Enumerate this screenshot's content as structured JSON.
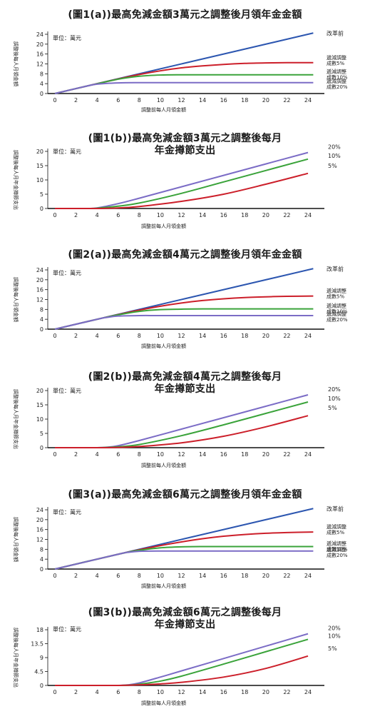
{
  "chart_data": [
    {
      "type": "line",
      "title": "(圖1(a))最高免減金額3萬元之調整後月領年金金額",
      "unit": "單位：萬元",
      "xlabel": "調整前每人月領金額",
      "ylabel": "調整後每人月領金額",
      "xticks": [
        0,
        2,
        4,
        6,
        8,
        10,
        12,
        14,
        16,
        18,
        20,
        22,
        24
      ],
      "yticks": [
        0,
        4,
        8,
        12,
        16,
        20,
        24
      ],
      "ylim": [
        0,
        26
      ],
      "xlim": [
        0,
        25
      ],
      "series": [
        {
          "name": "改革前",
          "color": "#2c56b0",
          "x": [
            0,
            24.5
          ],
          "y": [
            0,
            24.5
          ]
        },
        {
          "name": "遞減調整成數5%",
          "color": "#cc1f2a",
          "x": [
            0,
            3,
            6,
            8,
            10,
            12,
            14,
            16,
            18,
            20,
            22,
            24.5
          ],
          "y": [
            0,
            3,
            5.9,
            7.7,
            9.2,
            10.4,
            11.2,
            11.8,
            12.2,
            12.4,
            12.5,
            12.5
          ]
        },
        {
          "name": "遞減調整成數10%",
          "color": "#3aa33a",
          "x": [
            0,
            3,
            6,
            8,
            10,
            12,
            14,
            16,
            18,
            20,
            22,
            24.5
          ],
          "y": [
            0,
            3,
            5.8,
            7.0,
            7.5,
            7.6,
            7.6,
            7.6,
            7.6,
            7.6,
            7.6,
            7.6
          ]
        },
        {
          "name": "遞減調整成數20%",
          "color": "#7b6cc6",
          "x": [
            0,
            3,
            4,
            6,
            8,
            10,
            14,
            18,
            22,
            24.5
          ],
          "y": [
            0,
            3,
            3.8,
            4.3,
            4.4,
            4.4,
            4.4,
            4.4,
            4.4,
            4.4
          ]
        }
      ]
    },
    {
      "type": "line",
      "title": "(圖1(b))最高免減金額3萬元之調整後每月年金撙節支出",
      "title_line1": "(圖1(b))最高免減金額3萬元之調整後每月",
      "title_line2": "年金撙節支出",
      "unit": "單位：萬元",
      "xlabel": "調整前每人月領金額",
      "ylabel": "調整後每人月年金撙節支出",
      "xticks": [
        0,
        2,
        4,
        6,
        8,
        10,
        12,
        14,
        16,
        18,
        20,
        22,
        24
      ],
      "yticks": [
        0,
        5,
        10,
        15,
        20
      ],
      "ylim": [
        0,
        21
      ],
      "xlim": [
        0,
        25
      ],
      "series": [
        {
          "name": "20%",
          "color": "#7b6cc6",
          "x": [
            0,
            2,
            3,
            4,
            6,
            8,
            12,
            16,
            20,
            24
          ],
          "y": [
            0,
            0,
            0,
            0.2,
            1.7,
            3.6,
            7.6,
            11.6,
            15.6,
            19.6
          ]
        },
        {
          "name": "10%",
          "color": "#3aa33a",
          "x": [
            0,
            2,
            3,
            4,
            6,
            8,
            12,
            16,
            20,
            24
          ],
          "y": [
            0,
            0,
            0,
            0.1,
            0.8,
            1.9,
            5.3,
            9.3,
            13.3,
            17.3
          ]
        },
        {
          "name": "5%",
          "color": "#cc1f2a",
          "x": [
            0,
            2,
            3,
            4,
            6,
            8,
            12,
            16,
            20,
            24
          ],
          "y": [
            0,
            0,
            0,
            0,
            0.2,
            0.7,
            2.5,
            5.0,
            8.5,
            12.3
          ]
        }
      ]
    },
    {
      "type": "line",
      "title": "(圖2(a))最高免減金額4萬元之調整後月領年金金額",
      "unit": "單位：萬元",
      "xlabel": "調整前每人月領金額",
      "ylabel": "調整後每人月領金額",
      "xticks": [
        0,
        2,
        4,
        6,
        8,
        10,
        12,
        14,
        16,
        18,
        20,
        22,
        24
      ],
      "yticks": [
        0,
        4,
        8,
        12,
        16,
        20,
        24
      ],
      "ylim": [
        0,
        26
      ],
      "xlim": [
        0,
        25
      ],
      "series": [
        {
          "name": "改革前",
          "color": "#2c56b0",
          "x": [
            0,
            24.5
          ],
          "y": [
            0,
            24.5
          ]
        },
        {
          "name": "遞減調整成數5%",
          "color": "#cc1f2a",
          "x": [
            0,
            4,
            6,
            8,
            10,
            12,
            14,
            16,
            18,
            20,
            22,
            24.5
          ],
          "y": [
            0,
            4,
            5.9,
            7.7,
            9.3,
            10.6,
            11.6,
            12.3,
            12.8,
            13.1,
            13.3,
            13.4
          ]
        },
        {
          "name": "遞減調整成數10%",
          "color": "#3aa33a",
          "x": [
            0,
            4,
            6,
            8,
            10,
            12,
            14,
            18,
            22,
            24.5
          ],
          "y": [
            0,
            4,
            5.8,
            7.2,
            7.9,
            8.1,
            8.2,
            8.2,
            8.2,
            8.2
          ]
        },
        {
          "name": "遞減調整成數20%",
          "color": "#7b6cc6",
          "x": [
            0,
            4,
            5,
            6,
            8,
            10,
            14,
            18,
            22,
            24.5
          ],
          "y": [
            0,
            4,
            4.8,
            5.3,
            5.5,
            5.5,
            5.5,
            5.5,
            5.5,
            5.5
          ]
        }
      ]
    },
    {
      "type": "line",
      "title": "(圖2(b))最高免減金額4萬元之調整後每月年金撙節支出",
      "title_line1": "(圖2(b))最高免減金額4萬元之調整後每月",
      "title_line2": "年金撙節支出",
      "unit": "單位：萬元",
      "xlabel": "調整前每人月領金額",
      "ylabel": "調整後每人月年金撙節支出",
      "xticks": [
        0,
        2,
        4,
        6,
        8,
        10,
        12,
        14,
        16,
        18,
        20,
        22,
        24
      ],
      "yticks": [
        0,
        5,
        10,
        15,
        20
      ],
      "ylim": [
        0,
        21
      ],
      "xlim": [
        0,
        25
      ],
      "series": [
        {
          "name": "20%",
          "color": "#7b6cc6",
          "x": [
            0,
            2,
            4,
            5,
            6,
            8,
            12,
            16,
            20,
            24
          ],
          "y": [
            0,
            0,
            0,
            0.2,
            0.7,
            2.5,
            6.5,
            10.5,
            14.5,
            18.5
          ]
        },
        {
          "name": "10%",
          "color": "#3aa33a",
          "x": [
            0,
            2,
            4,
            5,
            6,
            8,
            12,
            16,
            20,
            24
          ],
          "y": [
            0,
            0,
            0,
            0.1,
            0.3,
            1.1,
            4.2,
            8.0,
            12.0,
            16.0
          ]
        },
        {
          "name": "5%",
          "color": "#cc1f2a",
          "x": [
            0,
            2,
            4,
            6,
            8,
            12,
            16,
            20,
            24
          ],
          "y": [
            0,
            0,
            0,
            0.1,
            0.4,
            1.7,
            4.0,
            7.3,
            11.2
          ]
        }
      ]
    },
    {
      "type": "line",
      "title": "(圖3(a))最高免減金額6萬元之調整後月領年金金額",
      "unit": "單位：萬元",
      "xlabel": "調整前每人月領金額",
      "ylabel": "調整後每人月領金額",
      "xticks": [
        0,
        2,
        4,
        6,
        8,
        10,
        12,
        14,
        16,
        18,
        20,
        22,
        24
      ],
      "yticks": [
        0,
        4,
        8,
        12,
        16,
        20,
        24
      ],
      "ylim": [
        0,
        26
      ],
      "xlim": [
        0,
        25
      ],
      "series": [
        {
          "name": "改革前",
          "color": "#2c56b0",
          "x": [
            0,
            24.5
          ],
          "y": [
            0,
            24.5
          ]
        },
        {
          "name": "遞減調整成數5%",
          "color": "#cc1f2a",
          "x": [
            0,
            6,
            8,
            10,
            12,
            14,
            16,
            18,
            20,
            22,
            24.5
          ],
          "y": [
            0,
            6,
            7.8,
            9.5,
            11.0,
            12.3,
            13.3,
            14.0,
            14.5,
            14.8,
            15.0
          ]
        },
        {
          "name": "遞減調整成數10%",
          "color": "#3aa33a",
          "x": [
            0,
            6,
            8,
            10,
            12,
            14,
            18,
            22,
            24.5
          ],
          "y": [
            0,
            6,
            7.6,
            8.6,
            9.0,
            9.1,
            9.1,
            9.1,
            9.1
          ]
        },
        {
          "name": "遞減調整成數20%",
          "color": "#7b6cc6",
          "x": [
            0,
            6,
            7,
            8,
            10,
            14,
            18,
            22,
            24.5
          ],
          "y": [
            0,
            6,
            6.8,
            7.2,
            7.3,
            7.3,
            7.3,
            7.3,
            7.3
          ]
        }
      ]
    },
    {
      "type": "line",
      "title": "(圖3(b))最高免減金額6萬元之調整後每月年金撙節支出",
      "title_line1": "(圖3(b))最高免減金額6萬元之調整後每月",
      "title_line2": "年金撙節支出",
      "unit": "單位：萬元",
      "xlabel": "調整前每人月領金額",
      "ylabel": "調整後每人月年金撙節支出",
      "xticks": [
        0,
        2,
        4,
        6,
        8,
        10,
        12,
        14,
        16,
        18,
        20,
        22,
        24
      ],
      "yticks": [
        0,
        4.5,
        9,
        13.5,
        18
      ],
      "ylim": [
        0,
        19.5
      ],
      "xlim": [
        0,
        25
      ],
      "series": [
        {
          "name": "20%",
          "color": "#7b6cc6",
          "x": [
            0,
            2,
            4,
            6,
            7,
            8,
            10,
            12,
            16,
            20,
            24
          ],
          "y": [
            0,
            0,
            0,
            0,
            0.2,
            0.8,
            2.7,
            4.7,
            8.7,
            12.7,
            16.7
          ]
        },
        {
          "name": "10%",
          "color": "#3aa33a",
          "x": [
            0,
            2,
            4,
            6,
            7,
            8,
            10,
            12,
            16,
            20,
            24
          ],
          "y": [
            0,
            0,
            0,
            0,
            0.1,
            0.4,
            1.4,
            3.0,
            6.9,
            10.9,
            14.9
          ]
        },
        {
          "name": "5%",
          "color": "#cc1f2a",
          "x": [
            0,
            2,
            4,
            6,
            8,
            10,
            12,
            16,
            20,
            24
          ],
          "y": [
            0,
            0,
            0,
            0,
            0.2,
            0.5,
            1.0,
            2.7,
            5.5,
            9.5
          ]
        }
      ]
    }
  ],
  "rotated_label_glyphs": {
    "a": "調整後每人月領金額",
    "b": "調整後每人月年金撙節支出"
  }
}
